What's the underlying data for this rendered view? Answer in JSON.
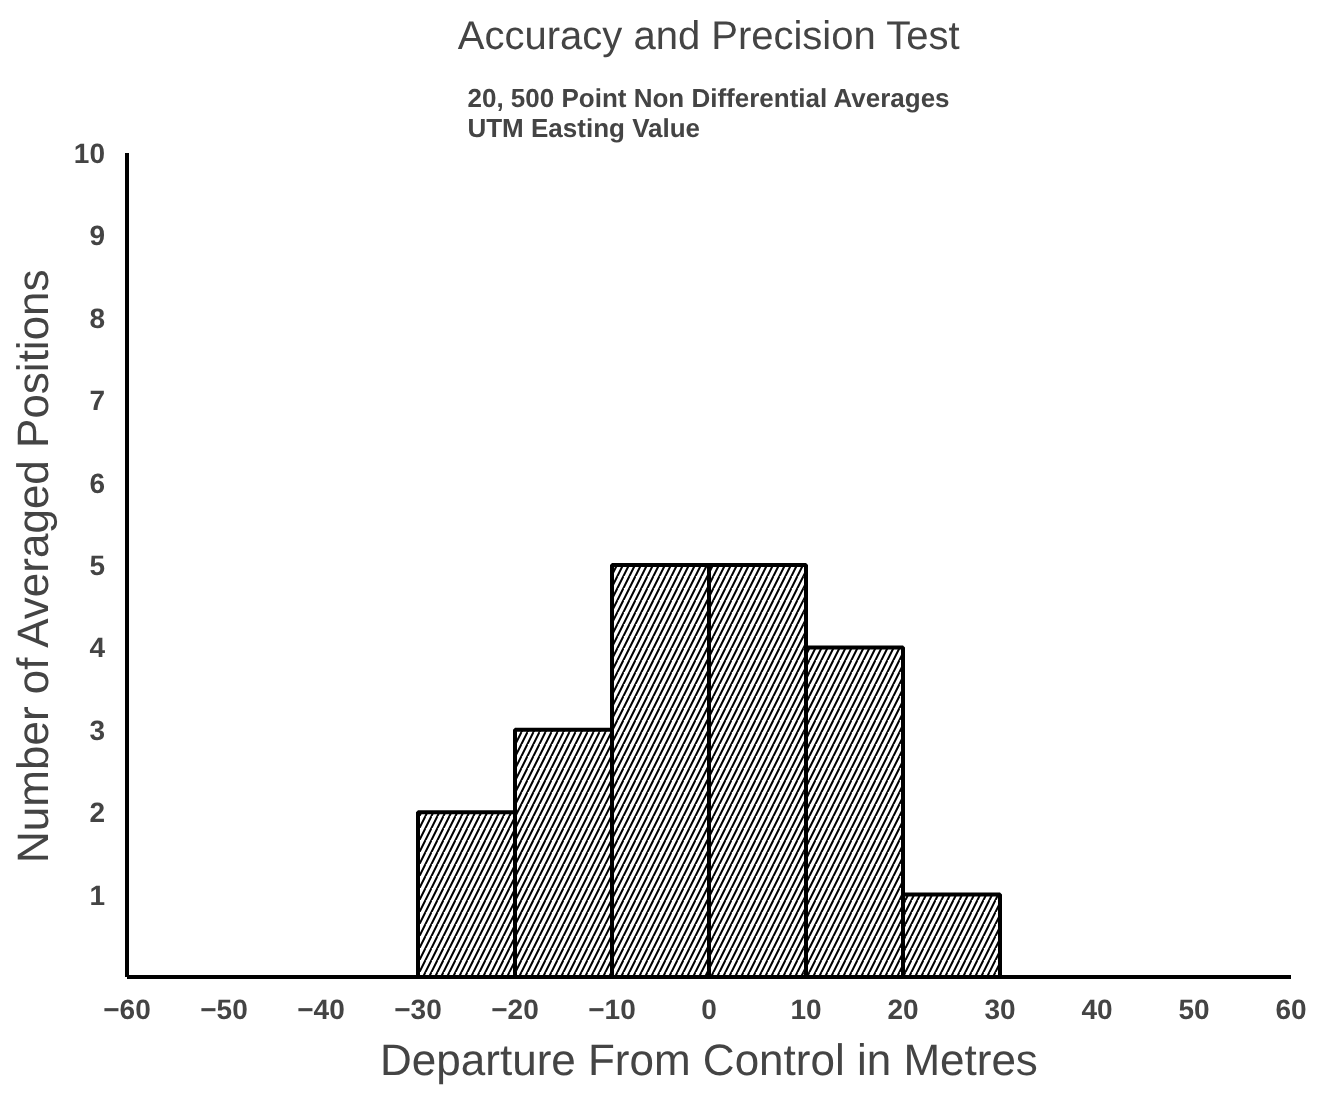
{
  "chart_data": {
    "type": "histogram",
    "title": "Accuracy and Precision Test",
    "subtitle": "20, 500 Point Non Differential Averages\nUTM Easting Value",
    "xlabel": "Departure From Control in Metres",
    "ylabel": "Number of Averaged Positions",
    "bins": [
      -30,
      -20,
      -10,
      0,
      10,
      20,
      30
    ],
    "values": [
      2,
      3,
      5,
      5,
      4,
      1
    ],
    "color": "#000000",
    "xlim": [
      -60,
      60
    ],
    "xticks": [
      -60,
      -50,
      -40,
      -30,
      -20,
      -10,
      0,
      10,
      20,
      30,
      40,
      50,
      60
    ],
    "ylim": [
      0,
      10
    ],
    "yticks": [
      1,
      2,
      3,
      4,
      5,
      6,
      7,
      8,
      9,
      10
    ],
    "grid": false
  }
}
